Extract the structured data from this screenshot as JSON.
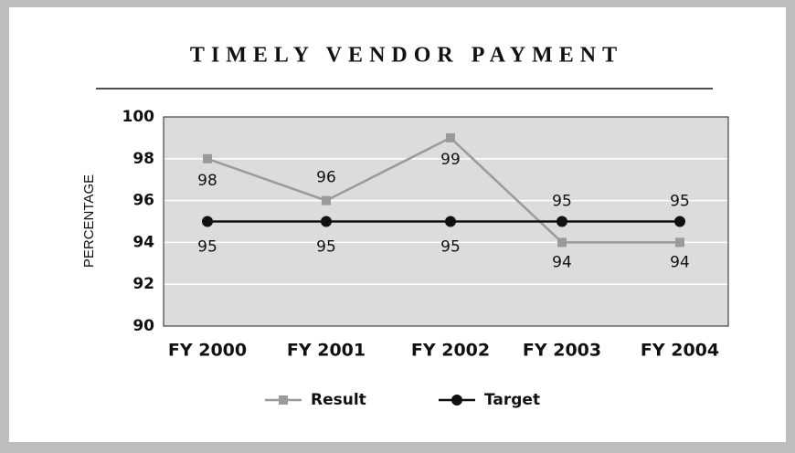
{
  "chart_data": {
    "type": "line",
    "title": "TIMELY VENDOR PAYMENT",
    "y_axis_label": "PERCENTAGE",
    "categories": [
      "FY 2000",
      "FY 2001",
      "FY 2002",
      "FY 2003",
      "FY 2004"
    ],
    "series": [
      {
        "name": "Result",
        "color": "#9a9a9a",
        "marker": "square",
        "values": [
          98,
          96,
          99,
          94,
          94
        ]
      },
      {
        "name": "Target",
        "color": "#111111",
        "marker": "circle",
        "values": [
          95,
          95,
          95,
          95,
          95
        ]
      }
    ],
    "ylim": [
      90,
      100
    ],
    "yticks": [
      90,
      92,
      94,
      96,
      98,
      100
    ],
    "grid": true,
    "legend": "bottom"
  }
}
